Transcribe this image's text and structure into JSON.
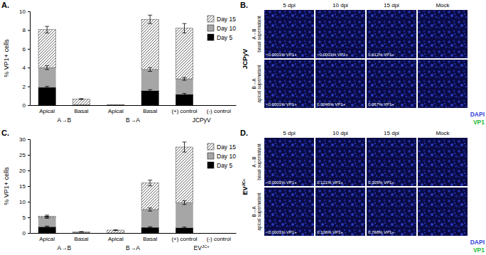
{
  "chart_data": [
    {
      "type": "bar",
      "panel": "A.",
      "stacked": true,
      "grid": false,
      "legend": "top-right",
      "ylabel": "% VP1+ cells",
      "categories": [
        "Apical",
        "Basal",
        "Apical",
        "Basal",
        "(+) control",
        "(-) control"
      ],
      "groups": [
        {
          "label": "A→B"
        },
        {
          "label": "B→A"
        },
        {
          "label": "JCPyV"
        }
      ],
      "ylim": [
        0,
        10
      ],
      "yticks": [
        0,
        2,
        4,
        6,
        8,
        10
      ],
      "series": [
        {
          "name": "Day 5",
          "color": "#000000",
          "values": [
            1.9,
            0,
            0,
            1.55,
            1.15,
            0
          ],
          "errors": [
            0.1,
            0,
            0,
            0.1,
            0.1,
            0
          ]
        },
        {
          "name": "Day 10",
          "color": "#a6a6a6",
          "values": [
            2.1,
            0.05,
            0,
            2.25,
            1.65,
            0
          ],
          "errors": [
            0.2,
            0,
            0,
            0.2,
            0.15,
            0
          ]
        },
        {
          "name": "Day 15",
          "color": "#404040",
          "line_style": "hatched",
          "values": [
            4.05,
            0.6,
            0.05,
            5.35,
            5.4,
            0
          ],
          "errors": [
            0.35,
            0.05,
            0,
            0.45,
            0.5,
            0
          ]
        }
      ]
    },
    {
      "type": "image_grid",
      "panel": "B.",
      "side_label": "JCPyV",
      "columns": [
        "5 dpi",
        "10 dpi",
        "15 dpi",
        "Mock"
      ],
      "rows": [
        {
          "label": [
            "A→B",
            "basal supernatant"
          ],
          "cells": [
            "<0.0001% VP1+",
            "<0.0001% VP1+",
            "0.612% VP1+",
            null
          ]
        },
        {
          "label": [
            "B→A",
            "apical supernatant"
          ],
          "cells": [
            "<0.0001% VP1+",
            "0.0046% VP1+",
            "0.067% VP1+",
            null
          ]
        }
      ],
      "legend": [
        {
          "name": "DAPI",
          "color": "#3344dd"
        },
        {
          "name": "VP1",
          "color": "#22bb33"
        }
      ]
    },
    {
      "type": "bar",
      "panel": "C.",
      "stacked": true,
      "grid": false,
      "legend": "top-right",
      "ylabel": "% VP1+ cells",
      "categories": [
        "Apical",
        "Basal",
        "Apical",
        "Basal",
        "(+) control",
        "(-) control"
      ],
      "groups": [
        {
          "label": "A→B"
        },
        {
          "label": "B→A"
        },
        {
          "label": "EV",
          "sup": "JC+"
        }
      ],
      "ylim": [
        0,
        30
      ],
      "yticks": [
        0,
        5,
        10,
        15,
        20,
        25,
        30
      ],
      "series": [
        {
          "name": "Day 5",
          "color": "#000000",
          "values": [
            2.0,
            0,
            0,
            1.8,
            1.7,
            0
          ],
          "errors": [
            0.2,
            0,
            0,
            0.2,
            0.2,
            0
          ]
        },
        {
          "name": "Day 10",
          "color": "#a6a6a6",
          "values": [
            3.0,
            0.1,
            0,
            5.7,
            8.0,
            0
          ],
          "errors": [
            0.3,
            0,
            0,
            0.5,
            0.6,
            0
          ]
        },
        {
          "name": "Day 15",
          "color": "#404040",
          "line_style": "hatched",
          "values": [
            0.4,
            0.3,
            0.9,
            8.5,
            17.8,
            0
          ],
          "errors": [
            0.3,
            0.05,
            0.1,
            0.9,
            1.6,
            0
          ]
        }
      ]
    },
    {
      "type": "image_grid",
      "panel": "D.",
      "side_label": "EV",
      "side_label_sup": "JC+",
      "columns": [
        "5 dpi",
        "10 dpi",
        "15 dpi",
        "Mock"
      ],
      "rows": [
        {
          "label": [
            "A→B",
            "basal supernatant"
          ],
          "cells": [
            "<0.0001% VP1+",
            "0.121% VP1+",
            "0.305% VP1+",
            null
          ]
        },
        {
          "label": [
            "B→A",
            "apical supernatant"
          ],
          "cells": [
            "<0.0001% VP1+",
            "0.106% VP1+",
            "0.768% VP1+",
            null
          ]
        }
      ],
      "legend": [
        {
          "name": "DAPI",
          "color": "#3344dd"
        },
        {
          "name": "VP1",
          "color": "#22bb33"
        }
      ]
    }
  ]
}
